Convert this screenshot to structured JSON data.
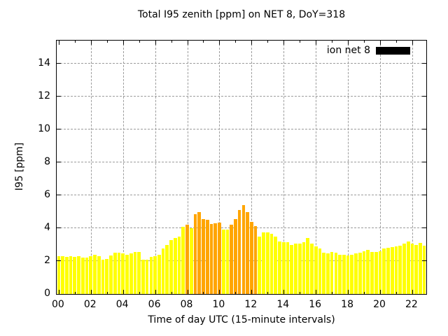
{
  "title": "Total I95 zenith [ppm] on NET 8, DoY=318",
  "legend": {
    "label": "ion net 8",
    "swatch_color": "#000000"
  },
  "axes": {
    "ylabel": "I95 [ppm]",
    "xlabel": "Time of day UTC (15-minute intervals)",
    "y_tick_labels": [
      "0",
      "2",
      "4",
      "6",
      "8",
      "10",
      "12",
      "14"
    ],
    "x_tick_labels": [
      "00",
      "02",
      "04",
      "06",
      "08",
      "10",
      "12",
      "14",
      "16",
      "18",
      "20",
      "22"
    ]
  },
  "colors": {
    "bar_default": "#ffff00",
    "bar_highlight": "#ffa500",
    "grid": "#9c9c9c",
    "axis": "#000000",
    "legend_swatch": "#000000"
  },
  "chart_data": {
    "type": "bar",
    "title": "Total I95 zenith [ppm] on NET 8, DoY=318",
    "xlabel": "Time of day UTC (15-minute intervals)",
    "ylabel": "I95 [ppm]",
    "ylim": [
      0,
      15.42
    ],
    "x_domain_hours": [
      -0.125,
      22.875
    ],
    "interval_minutes": 15,
    "grid": true,
    "legend_position": "top-right",
    "y_ticks": [
      0,
      2,
      4,
      6,
      8,
      10,
      12,
      14
    ],
    "x_tick_hours": [
      0,
      2,
      4,
      6,
      8,
      10,
      12,
      14,
      16,
      18,
      20,
      22
    ],
    "x_tick_labels": [
      "00",
      "02",
      "04",
      "06",
      "08",
      "10",
      "12",
      "14",
      "16",
      "18",
      "20",
      "22"
    ],
    "series": [
      {
        "name": "ion net 8",
        "default_color": "#ffff00",
        "highlight_color": "#ffa500",
        "highlight_indices": [
          32,
          34,
          35,
          36,
          37,
          38,
          39,
          40,
          43,
          44,
          45,
          46,
          47,
          48,
          49
        ],
        "times": [
          "00:00",
          "00:15",
          "00:30",
          "00:45",
          "01:00",
          "01:15",
          "01:30",
          "01:45",
          "02:00",
          "02:15",
          "02:30",
          "02:45",
          "03:00",
          "03:15",
          "03:30",
          "03:45",
          "04:00",
          "04:15",
          "04:30",
          "04:45",
          "05:00",
          "05:15",
          "05:30",
          "05:45",
          "06:00",
          "06:15",
          "06:30",
          "06:45",
          "07:00",
          "07:15",
          "07:30",
          "07:45",
          "08:00",
          "08:15",
          "08:30",
          "08:45",
          "09:00",
          "09:15",
          "09:30",
          "09:45",
          "10:00",
          "10:15",
          "10:30",
          "10:45",
          "11:00",
          "11:15",
          "11:30",
          "11:45",
          "12:00",
          "12:15",
          "12:30",
          "12:45",
          "13:00",
          "13:15",
          "13:30",
          "13:45",
          "14:00",
          "14:15",
          "14:30",
          "14:45",
          "15:00",
          "15:15",
          "15:30",
          "15:45",
          "16:00",
          "16:15",
          "16:30",
          "16:45",
          "17:00",
          "17:15",
          "17:30",
          "17:45",
          "18:00",
          "18:15",
          "18:30",
          "18:45",
          "19:00",
          "19:15",
          "19:30",
          "19:45",
          "20:00",
          "20:15",
          "20:30",
          "20:45",
          "21:00",
          "21:15",
          "21:30",
          "21:45",
          "22:00",
          "22:15",
          "22:30",
          "22:45"
        ],
        "values": [
          2.3,
          2.3,
          2.25,
          2.3,
          2.25,
          2.3,
          2.2,
          2.2,
          2.3,
          2.4,
          2.3,
          2.1,
          2.15,
          2.35,
          2.5,
          2.5,
          2.45,
          2.4,
          2.45,
          2.55,
          2.55,
          2.1,
          2.1,
          2.25,
          2.3,
          2.4,
          2.75,
          3.0,
          3.3,
          3.4,
          3.5,
          4.1,
          4.2,
          4.0,
          4.85,
          5.0,
          4.55,
          4.5,
          4.25,
          4.3,
          4.35,
          3.9,
          3.9,
          4.2,
          4.55,
          5.1,
          5.4,
          5.0,
          4.4,
          4.15,
          3.5,
          3.75,
          3.75,
          3.65,
          3.5,
          3.2,
          3.15,
          3.15,
          3.0,
          3.05,
          3.05,
          3.15,
          3.4,
          3.05,
          2.9,
          2.75,
          2.5,
          2.45,
          2.55,
          2.5,
          2.4,
          2.4,
          2.35,
          2.4,
          2.45,
          2.5,
          2.6,
          2.7,
          2.55,
          2.55,
          2.6,
          2.75,
          2.8,
          2.85,
          2.9,
          2.95,
          3.05,
          3.2,
          3.05,
          3.0,
          3.1,
          2.95
        ]
      }
    ]
  }
}
